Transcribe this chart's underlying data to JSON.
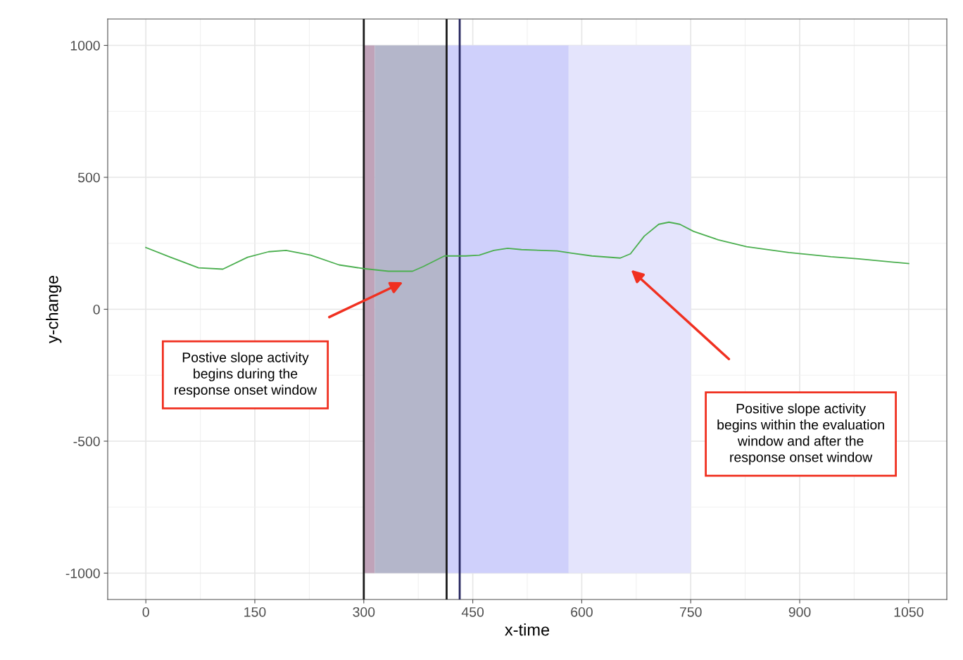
{
  "chart_data": {
    "type": "line",
    "xlabel": "x-time",
    "ylabel": "y-change",
    "xlim": [
      -52.5,
      1102.5
    ],
    "xticks": [
      0,
      150,
      300,
      450,
      600,
      750,
      900,
      1050
    ],
    "ylim": [
      -1100,
      1100
    ],
    "yticks": [
      -1000,
      -500,
      0,
      500,
      1000
    ],
    "grid": true,
    "series": [
      {
        "color": "#4caf50",
        "x": [
          0,
          34,
          72.5,
          106,
          140,
          169,
          193,
          227,
          266,
          300,
          334,
          367,
          382,
          411,
          440,
          459,
          479,
          498,
          517,
          566,
          585,
          614,
          653,
          667,
          686,
          706,
          720,
          735,
          754,
          788,
          827,
          885,
          943,
          981,
          1050
        ],
        "values": [
          234,
          197,
          157,
          152,
          197,
          218,
          223,
          205,
          168,
          154,
          144,
          144,
          162,
          202,
          202,
          205,
          223,
          231,
          226,
          221,
          213,
          202,
          194,
          210,
          277,
          322,
          330,
          322,
          295,
          263,
          237,
          215,
          199,
          191,
          173
        ]
      }
    ],
    "bands": [
      {
        "axis": "x",
        "from": 300,
        "to": 315,
        "color": "#c0a3b9"
      },
      {
        "axis": "x",
        "from": 315,
        "to": 414,
        "color": "#b4b6ca"
      },
      {
        "axis": "x",
        "from": 414,
        "to": 582,
        "color": "#cfd0fb"
      },
      {
        "axis": "x",
        "from": 582,
        "to": 750,
        "color": "#e4e4fc"
      }
    ],
    "ref_lines": [
      {
        "axis": "x",
        "value": 300,
        "color": "#1a1a1a"
      },
      {
        "axis": "x",
        "value": 414,
        "color": "#1a1a1a"
      },
      {
        "axis": "x",
        "value": 432,
        "color": "#25255e"
      }
    ],
    "annotations": [
      "Postive slope activity\nbegins during the\nresponse onset window",
      "Positive slope activity\nbegins within the evaluation\nwindow and after the\nresponse onset window"
    ]
  }
}
